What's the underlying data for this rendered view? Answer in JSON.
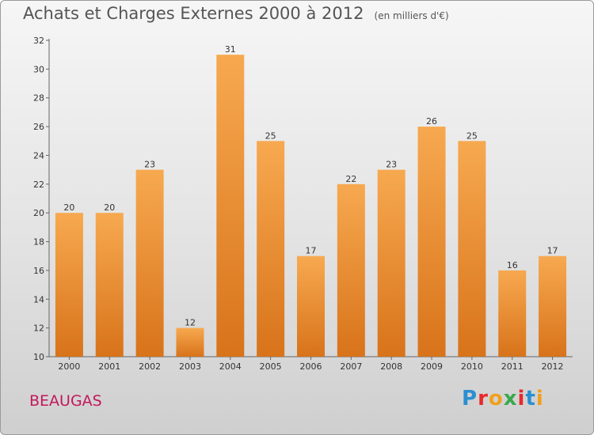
{
  "header": {
    "title": "Achats et Charges Externes 2000 à 2012",
    "unit": "(en milliers d'€)"
  },
  "commune": "BEAUGAS",
  "logo": {
    "letters": [
      "P",
      "r",
      "o",
      "x",
      "i",
      "t",
      "i"
    ],
    "colors": [
      "#2b8fd1",
      "#e8282b",
      "#f0a01c",
      "#3aa84b",
      "#e8282b",
      "#2b8fd1",
      "#f0a01c"
    ]
  },
  "colors": {
    "bar_light": "#f7a950",
    "bar_dark": "#d8731a",
    "axis": "#666666"
  },
  "chart_data": {
    "type": "bar",
    "title": "Achats et Charges Externes 2000 à 2012",
    "categories": [
      "2000",
      "2001",
      "2002",
      "2003",
      "2004",
      "2005",
      "2006",
      "2007",
      "2008",
      "2009",
      "2010",
      "2011",
      "2012"
    ],
    "values": [
      20,
      20,
      23,
      12,
      31,
      25,
      17,
      22,
      23,
      26,
      25,
      16,
      17
    ],
    "yticks": [
      10,
      12,
      14,
      16,
      18,
      20,
      22,
      24,
      26,
      28,
      30,
      32
    ],
    "ylim": [
      10,
      32
    ],
    "grid": false,
    "xlabel": "",
    "ylabel": ""
  }
}
